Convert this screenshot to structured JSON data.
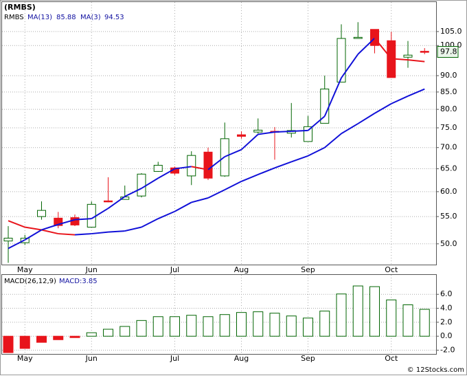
{
  "chart_data": [
    {
      "type": "candlestick",
      "title": "(RMBS)",
      "yscale": "log",
      "grid": true,
      "up_color": "#006400",
      "down_color": "#e8141b",
      "rise_color": "#1010d8",
      "fall_color": "#e8141b",
      "categories": [
        null,
        "May",
        null,
        null,
        null,
        "Jun",
        null,
        null,
        null,
        null,
        "Jul",
        null,
        null,
        null,
        "Aug",
        null,
        null,
        null,
        "Sep",
        null,
        null,
        null,
        null,
        "Oct",
        null,
        null
      ],
      "ylim": [
        46.5,
        116.4
      ],
      "yticks": [
        {
          "value": 50,
          "label": "50.0"
        },
        {
          "value": 55,
          "label": "55.0"
        },
        {
          "value": 60,
          "label": "60.0"
        },
        {
          "value": 65,
          "label": "65.0"
        },
        {
          "value": 70,
          "label": "70.0"
        },
        {
          "value": 75,
          "label": "75.0"
        },
        {
          "value": 80,
          "label": "80.0"
        },
        {
          "value": 85,
          "label": "85.0"
        },
        {
          "value": 90,
          "label": "90.0"
        },
        {
          "value": 100,
          "label": "100.0"
        },
        {
          "value": 105,
          "label": "105.0"
        }
      ],
      "candles": {
        "name": "RMBS",
        "open": [
          50.5,
          50.2,
          55.0,
          54.7,
          54.8,
          53.0,
          58.1,
          58.4,
          59.1,
          64.4,
          65.2,
          63.4,
          68.9,
          63.4,
          73.2,
          73.9,
          74.1,
          73.6,
          71.5,
          76.2,
          88.0,
          102.5,
          105.8,
          101.7,
          96.0,
          98.0
        ],
        "high": [
          53.2,
          51.6,
          58.0,
          55.9,
          55.4,
          58.0,
          63.1,
          61.3,
          64.0,
          66.6,
          65.5,
          69.1,
          70.0,
          76.4,
          74.1,
          77.5,
          75.2,
          81.8,
          78.2,
          90.0,
          107.7,
          108.5,
          105.8,
          104.9,
          101.6,
          99.1
        ],
        "low": [
          46.8,
          49.8,
          54.4,
          52.8,
          53.2,
          53.0,
          57.8,
          58.5,
          58.8,
          64.3,
          63.6,
          61.4,
          62.5,
          63.2,
          72.2,
          73.5,
          67.1,
          72.5,
          71.5,
          76.2,
          88.0,
          102.5,
          97.3,
          89.4,
          92.5,
          97.0
        ],
        "close": [
          51.0,
          51.0,
          56.2,
          53.3,
          53.4,
          57.4,
          57.9,
          58.9,
          63.8,
          65.8,
          64.0,
          68.1,
          62.9,
          72.2,
          72.8,
          74.4,
          73.9,
          74.3,
          75.3,
          85.9,
          102.5,
          102.9,
          100.0,
          89.4,
          96.7,
          97.8
        ]
      },
      "series": [
        {
          "name": "MA(13)",
          "values": [
            54.2,
            53.0,
            52.5,
            51.8,
            51.6,
            51.8,
            52.1,
            52.3,
            53.0,
            54.6,
            56.0,
            57.8,
            58.7,
            60.4,
            62.2,
            63.7,
            65.2,
            66.6,
            68.0,
            70.0,
            73.5,
            76.1,
            78.9,
            81.6,
            83.8,
            85.88
          ]
        },
        {
          "name": "MA(3)",
          "values": [
            49.2,
            50.7,
            52.5,
            53.5,
            54.4,
            54.6,
            56.6,
            59.0,
            60.7,
            62.9,
            65.0,
            65.5,
            64.8,
            67.8,
            69.5,
            73.3,
            73.9,
            74.1,
            74.3,
            78.1,
            89.3,
            97.0,
            102.6,
            95.5,
            95.1,
            94.53
          ]
        }
      ]
    },
    {
      "type": "bar",
      "title": "MACD(26,12,9)",
      "grid": true,
      "pos_color": "#006400",
      "neg_color": "#e8141b",
      "categories": [
        null,
        "May",
        null,
        null,
        null,
        "Jun",
        null,
        null,
        null,
        null,
        "Jul",
        null,
        null,
        null,
        "Aug",
        null,
        null,
        null,
        "Sep",
        null,
        null,
        null,
        null,
        "Oct",
        null,
        null
      ],
      "ylim": [
        -2.54,
        8.78
      ],
      "yticks": [
        {
          "value": 6,
          "label": "6.0"
        },
        {
          "value": 4,
          "label": "4.0"
        },
        {
          "value": 2,
          "label": "2.0"
        },
        {
          "value": 0,
          "label": "0.0"
        },
        {
          "value": -2,
          "label": "-2.0"
        }
      ],
      "series": [
        {
          "name": "MACD:3.85",
          "values": [
            -2.35,
            -1.75,
            -0.88,
            -0.5,
            -0.2,
            0.5,
            1.0,
            1.4,
            2.25,
            2.8,
            2.8,
            3.0,
            2.8,
            3.1,
            3.4,
            3.5,
            3.3,
            2.9,
            2.6,
            3.6,
            6.05,
            7.2,
            7.1,
            5.2,
            4.5,
            3.85
          ]
        }
      ]
    }
  ],
  "footer": "© 12Stocks.com"
}
